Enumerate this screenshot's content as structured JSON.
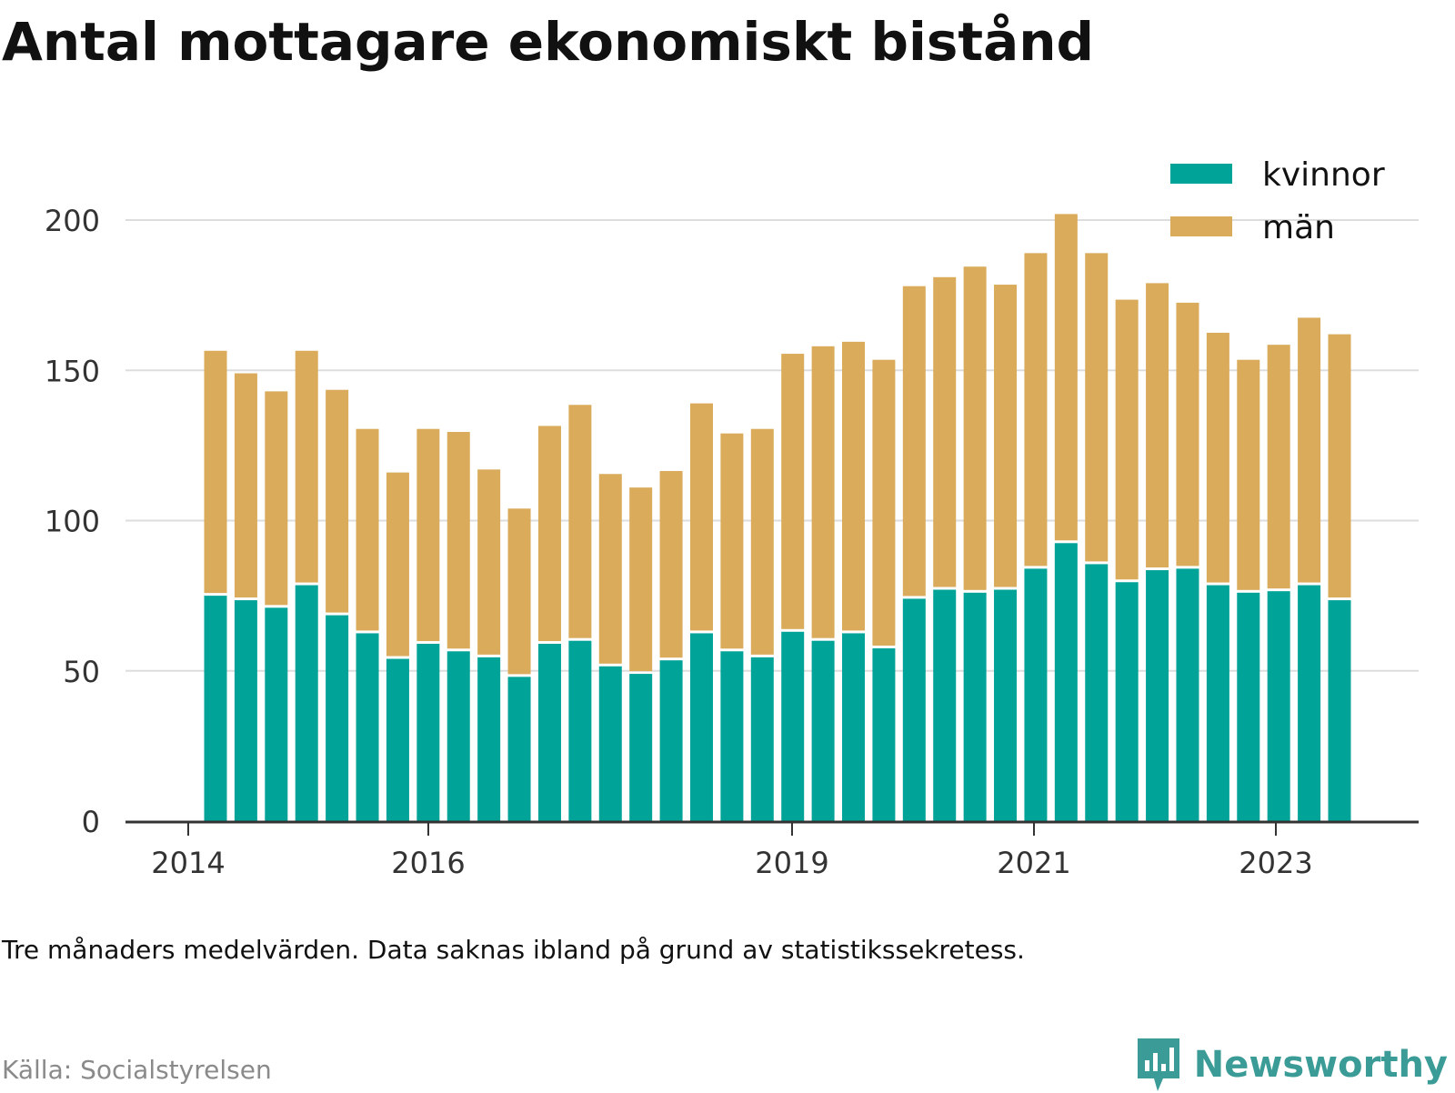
{
  "title": "Antal mottagare ekonomiskt bistånd",
  "note": "Tre månaders medelvärden. Data saknas ibland på grund av statistikssekretess.",
  "source": "Källa: Socialstyrelsen",
  "brand": "Newsworthy",
  "colors": {
    "kvinnor": "#00a398",
    "man": "#d9ab5a",
    "grid": "#dddddd",
    "axis": "#333333",
    "brand": "#3b9b96"
  },
  "chart_data": {
    "type": "bar",
    "stacked": true,
    "title": "Antal mottagare ekonomiskt bistånd",
    "ylim": [
      0,
      200
    ],
    "yticks": [
      0,
      50,
      100,
      150,
      200
    ],
    "xticks": [
      "2014",
      "2016",
      "2019",
      "2021",
      "2023"
    ],
    "legend": {
      "position": "top-right",
      "entries": [
        "kvinnor",
        "män"
      ]
    },
    "grid": true,
    "series": [
      {
        "name": "kvinnor",
        "values": [
          75,
          73.5,
          71,
          78.5,
          68.5,
          62.5,
          54,
          59,
          56.5,
          54.5,
          48,
          59,
          60,
          51.5,
          49,
          53.5,
          62.5,
          56.5,
          54.5,
          63,
          60,
          62.5,
          57.5,
          74,
          77,
          76,
          77,
          84,
          92.5,
          85.5,
          79.5,
          83.5,
          84,
          78.5,
          76,
          76.5,
          78.5,
          73.5
        ]
      },
      {
        "name": "män",
        "values": [
          81.5,
          75.5,
          72,
          78,
          75,
          68,
          62,
          71.5,
          73,
          62.5,
          56,
          72.5,
          78.5,
          64,
          62,
          63,
          76.5,
          72.5,
          76,
          92.5,
          98,
          97,
          96,
          104,
          104,
          108.5,
          101.5,
          105,
          109.5,
          103.5,
          94,
          95.5,
          88.5,
          84,
          77.5,
          82,
          89,
          88.5
        ]
      }
    ]
  }
}
